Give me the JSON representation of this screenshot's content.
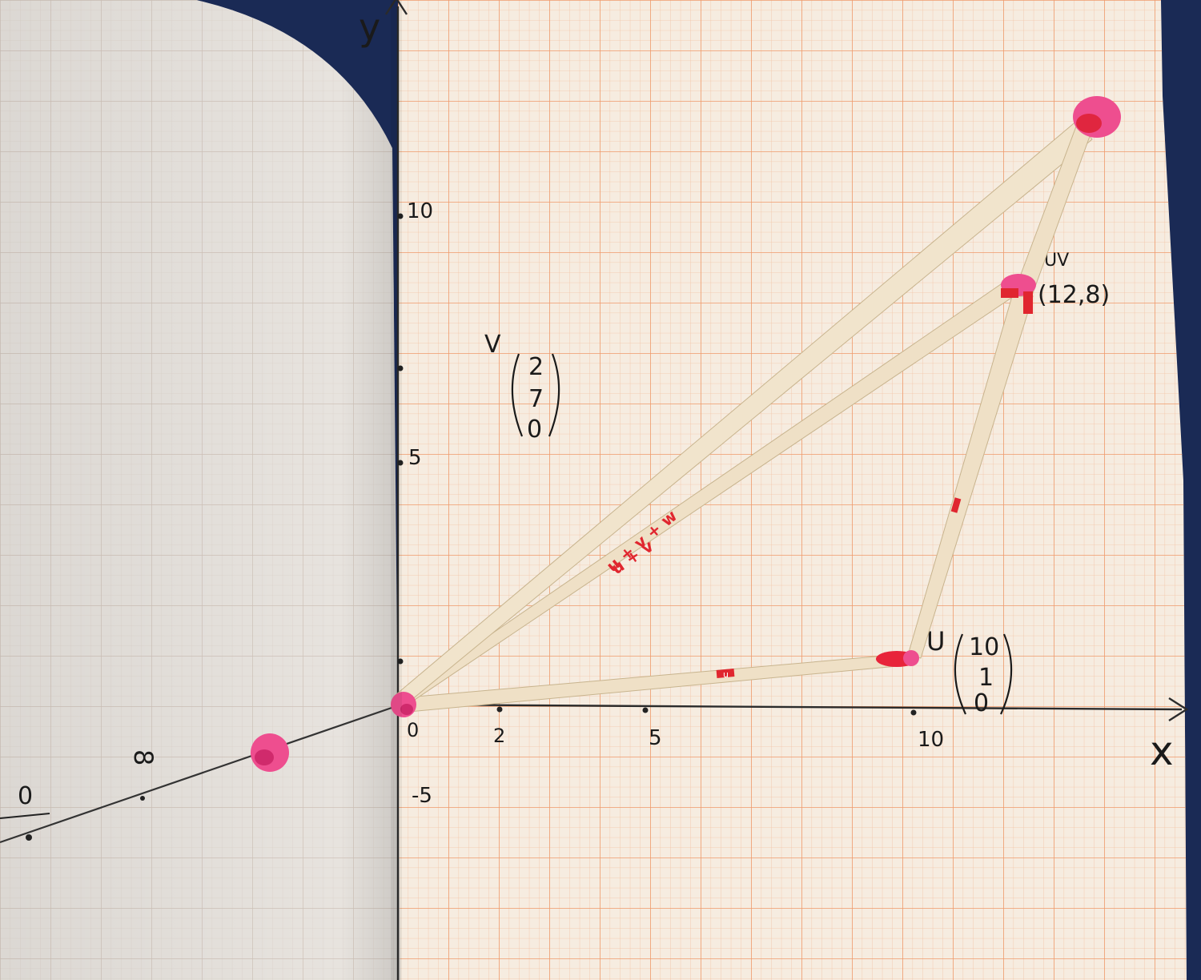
{
  "axes": {
    "x_label": "x",
    "y_label": "y",
    "origin_label": "0",
    "x_ticks": [
      "2",
      "5",
      "10"
    ],
    "y_ticks": [
      "10",
      "5",
      "-5"
    ]
  },
  "notes": {
    "v_name": "V",
    "v_vector": [
      "2",
      "7",
      "0"
    ],
    "u_name": "U",
    "u_vector": [
      "10",
      "1",
      "0"
    ],
    "uv_name": "UV",
    "uv_point": "(12,8)"
  },
  "sticks": {
    "u_label": "u",
    "u_plus_v_label": "u + v",
    "u_plus_v_plus_w_label": "u + v + w"
  },
  "left_page": {
    "numbers": [
      "0",
      "8"
    ]
  },
  "colors": {
    "paper": "#f6ece0",
    "grid_minor": "#f3c3a4",
    "grid_major": "#ef9a6a",
    "left_page": "#e7e3de",
    "stick": "#efe0c6",
    "marker": "#e2245a",
    "ink": "#1a1a1a",
    "background": "#1a2a55"
  }
}
